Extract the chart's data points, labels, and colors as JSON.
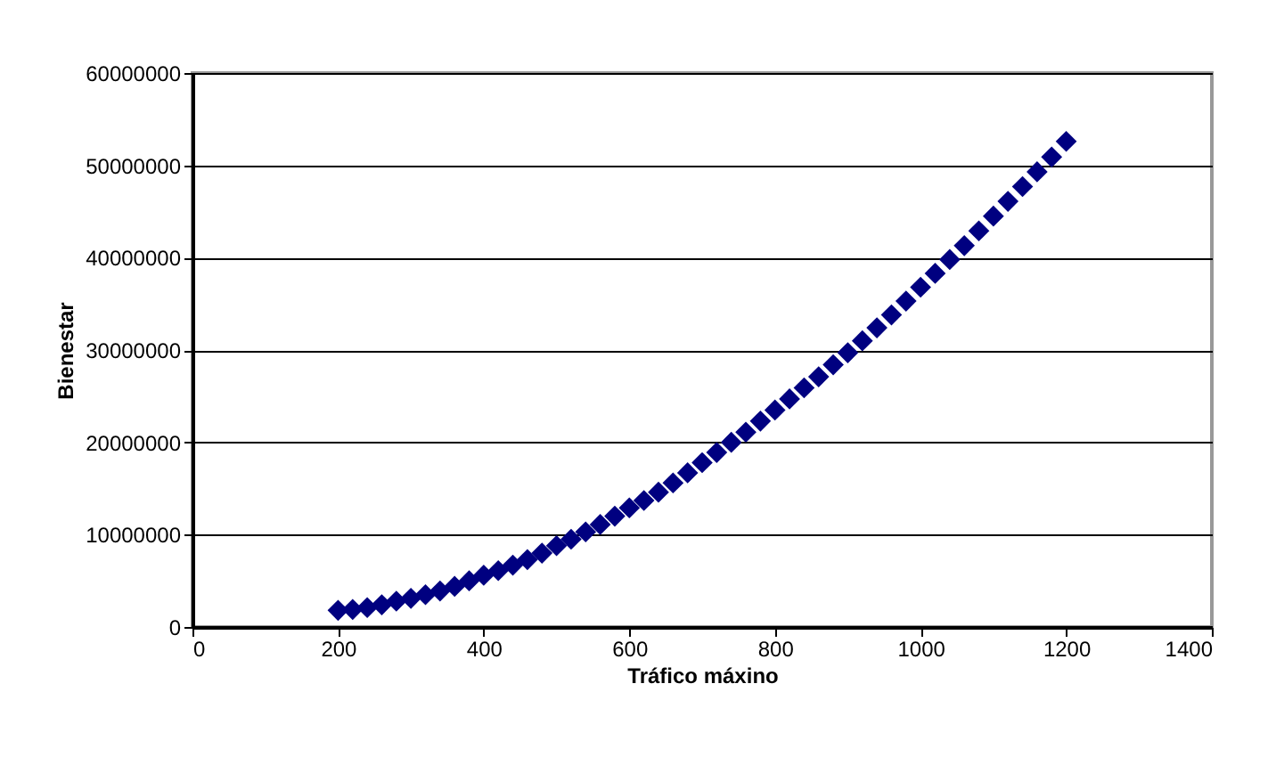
{
  "chart_data": {
    "type": "scatter",
    "xlabel": "Tráfico máxino",
    "ylabel": "Bienestar",
    "marker": "diamond",
    "grid": "y",
    "legend": false,
    "xlim": [
      0,
      1400
    ],
    "xticks": [
      0,
      200,
      400,
      600,
      800,
      1000,
      1200,
      1400
    ],
    "ylim": [
      0,
      60000000
    ],
    "yticks": [
      0,
      10000000,
      20000000,
      30000000,
      40000000,
      50000000,
      60000000
    ],
    "x": [
      200,
      220,
      240,
      260,
      280,
      300,
      320,
      340,
      360,
      380,
      400,
      420,
      440,
      460,
      480,
      500,
      520,
      540,
      560,
      580,
      600,
      620,
      640,
      660,
      680,
      700,
      720,
      740,
      760,
      780,
      800,
      820,
      840,
      860,
      880,
      900,
      920,
      940,
      960,
      980,
      1000,
      1020,
      1040,
      1060,
      1080,
      1100,
      1120,
      1140,
      1160,
      1180,
      1200
    ],
    "series": [
      {
        "color": "#000080",
        "values": [
          1800000,
          1900000,
          2100000,
          2400000,
          2800000,
          3100000,
          3500000,
          3900000,
          4400000,
          5000000,
          5600000,
          6100000,
          6700000,
          7300000,
          8000000,
          8800000,
          9500000,
          10300000,
          11100000,
          12000000,
          12900000,
          13700000,
          14600000,
          15600000,
          16700000,
          17800000,
          18900000,
          20000000,
          21100000,
          22300000,
          23500000,
          24700000,
          25900000,
          27100000,
          28400000,
          29700000,
          31000000,
          32400000,
          33800000,
          35300000,
          36800000,
          38300000,
          39800000,
          41300000,
          42900000,
          44500000,
          46100000,
          47700000,
          49300000,
          50900000,
          52600000
        ]
      }
    ]
  }
}
